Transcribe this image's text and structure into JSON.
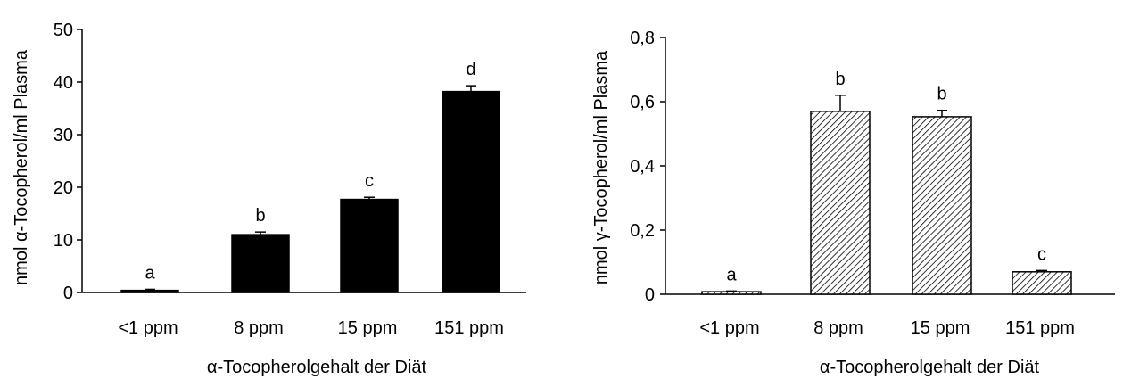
{
  "chart_data": [
    {
      "type": "bar",
      "categories": [
        "<1 ppm",
        "8 ppm",
        "15 ppm",
        "151 ppm"
      ],
      "values": [
        0.4,
        11.0,
        17.7,
        38.2
      ],
      "errors": [
        0.2,
        0.5,
        0.4,
        1.1
      ],
      "significance_labels": [
        "a",
        "b",
        "c",
        "d"
      ],
      "xlabel": "α-Tocopherolgehalt der Diät",
      "ylabel": "nmol α-Tocopherol/ml Plasma",
      "ylim": [
        0,
        50
      ],
      "yticks": [
        "0",
        "10",
        "20",
        "30",
        "40",
        "50"
      ],
      "ytick_values": [
        0,
        10,
        20,
        30,
        40,
        50
      ],
      "bar_fill": "solid",
      "bar_color": "#000000",
      "grid": false,
      "legend": "none"
    },
    {
      "type": "bar",
      "categories": [
        "<1 ppm",
        "8 ppm",
        "15 ppm",
        "151 ppm"
      ],
      "values": [
        0.008,
        0.57,
        0.553,
        0.07
      ],
      "errors": [
        0.002,
        0.05,
        0.02,
        0.004
      ],
      "significance_labels": [
        "a",
        "b",
        "b",
        "c"
      ],
      "xlabel": "α-Tocopherolgehalt der Diät",
      "ylabel": "nmol γ-Tocopherol/ml Plasma",
      "ylim": [
        0,
        0.8
      ],
      "yticks": [
        "0",
        "0,2",
        "0,4",
        "0,6",
        "0,8"
      ],
      "ytick_values": [
        0,
        0.2,
        0.4,
        0.6,
        0.8
      ],
      "bar_fill": "hatched",
      "bar_color": "#000000",
      "grid": false,
      "legend": "none"
    }
  ]
}
